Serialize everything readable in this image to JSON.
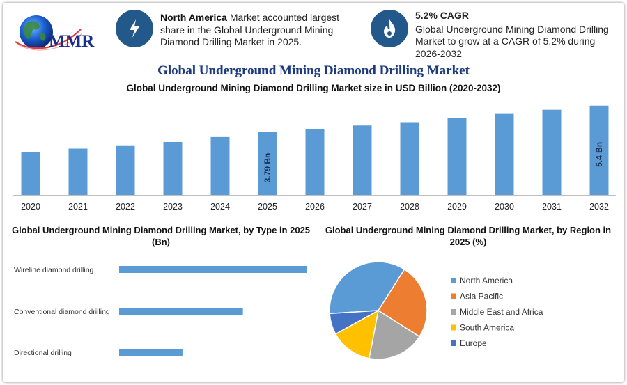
{
  "logo": {
    "text": "MMR"
  },
  "stats": [
    {
      "icon": "lightning-icon",
      "bold": "North America",
      "text": " Market accounted largest share in the Global Underground Mining Diamond Drilling Market in 2025."
    },
    {
      "icon": "flame-icon",
      "bold": "5.2% CAGR",
      "text": "Global Underground Mining Diamond Drilling Market to grow at a CAGR of 5.2% during 2026-2032"
    }
  ],
  "title": "Global Underground Mining Diamond Drilling Market",
  "colors": {
    "bar": "#5b9bd5",
    "title": "#1f3a7a",
    "icon_bg": "#23588a"
  },
  "chart_data": [
    {
      "type": "bar",
      "title": "Global Underground Mining Diamond Drilling Market size in USD Billion (2020-2032)",
      "categories": [
        "2020",
        "2021",
        "2022",
        "2023",
        "2024",
        "2025",
        "2026",
        "2027",
        "2028",
        "2029",
        "2030",
        "2031",
        "2032"
      ],
      "values": [
        2.6,
        2.8,
        3.0,
        3.2,
        3.5,
        3.79,
        4.0,
        4.2,
        4.4,
        4.65,
        4.9,
        5.15,
        5.4
      ],
      "data_labels": {
        "5": "3.79 Bn",
        "12": "5.4 Bn"
      },
      "ylim": [
        0,
        5.6
      ],
      "grid": false
    },
    {
      "type": "bar",
      "orientation": "horizontal",
      "title": "Global Underground Mining Diamond Drilling Market, by Type in 2025 (Bn)",
      "categories": [
        "Wireline diamond drilling",
        "Conventional diamond drilling",
        "Directional drilling"
      ],
      "values": [
        1.9,
        1.25,
        0.64
      ],
      "xlim": [
        0,
        1.9
      ]
    },
    {
      "type": "pie",
      "title": "Global Underground Mining Diamond Drilling Market, by Region in 2025 (%)",
      "legend_position": "right",
      "slices": [
        {
          "label": "North America",
          "value": 35,
          "color": "#5b9bd5"
        },
        {
          "label": "Asia Pacific",
          "value": 25,
          "color": "#ed7d31"
        },
        {
          "label": "Middle East and Africa",
          "value": 19,
          "color": "#a5a5a5"
        },
        {
          "label": "South America",
          "value": 14,
          "color": "#ffc000"
        },
        {
          "label": "Europe",
          "value": 7,
          "color": "#4472c4"
        }
      ]
    }
  ]
}
